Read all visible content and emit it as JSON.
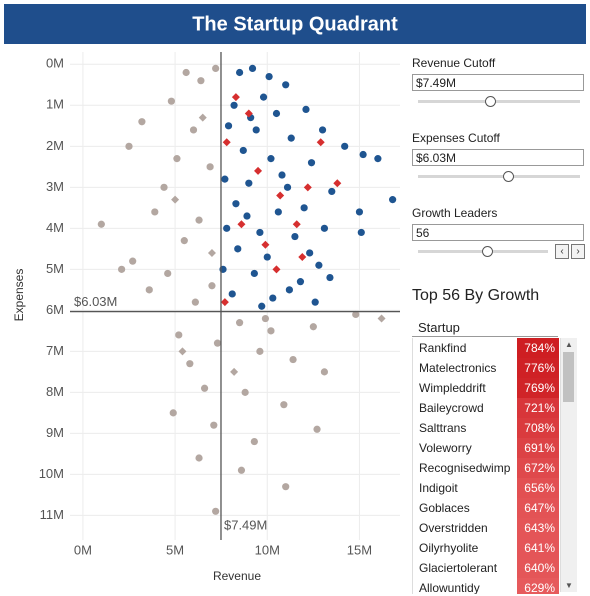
{
  "title": "The Startup Quadrant",
  "chart_data": {
    "type": "scatter",
    "x_label": "Revenue",
    "y_label": "Expenses",
    "xlim": [
      -0.7,
      17.2
    ],
    "xticks": [
      {
        "value": 0,
        "label": "0M"
      },
      {
        "value": 5,
        "label": "5M"
      },
      {
        "value": 10,
        "label": "10M"
      },
      {
        "value": 15,
        "label": "15M"
      }
    ],
    "ylim": [
      -0.3,
      11.6
    ],
    "y_inverted": true,
    "yticks": [
      {
        "value": 0,
        "label": "0M"
      },
      {
        "value": 1,
        "label": "1M"
      },
      {
        "value": 2,
        "label": "2M"
      },
      {
        "value": 3,
        "label": "3M"
      },
      {
        "value": 4,
        "label": "4M"
      },
      {
        "value": 5,
        "label": "5M"
      },
      {
        "value": 6,
        "label": "6M"
      },
      {
        "value": 7,
        "label": "7M"
      },
      {
        "value": 8,
        "label": "8M"
      },
      {
        "value": 9,
        "label": "9M"
      },
      {
        "value": 10,
        "label": "10M"
      },
      {
        "value": 11,
        "label": "11M"
      }
    ],
    "grid": true,
    "reference_lines": [
      {
        "axis": "x",
        "value": 7.49,
        "label": "$7.49M"
      },
      {
        "axis": "y",
        "value": 6.03,
        "label": "$6.03M"
      }
    ],
    "series": [
      {
        "color": "#b3a7a1",
        "marker": "circle",
        "x": [
          5.6,
          6.4,
          7.2,
          4.8,
          3.2,
          6.0,
          2.5,
          5.1,
          6.9,
          4.4,
          1.0,
          3.9,
          6.3,
          5.5,
          2.7,
          4.6,
          7.0,
          6.1,
          8.5,
          10.2,
          12.5,
          14.8,
          7.3,
          9.6,
          11.4,
          5.8,
          13.1,
          6.6,
          8.8,
          10.9,
          4.9,
          7.1,
          12.7,
          9.3,
          6.3,
          8.6,
          11.0,
          7.2,
          5.2,
          3.6,
          2.1,
          9.9
        ],
        "values": [
          0.2,
          0.4,
          0.1,
          0.9,
          1.4,
          1.6,
          2.0,
          2.3,
          2.5,
          3.0,
          3.9,
          3.6,
          3.8,
          4.3,
          4.8,
          5.1,
          5.4,
          5.8,
          6.3,
          6.5,
          6.4,
          6.1,
          6.8,
          7.0,
          7.2,
          7.3,
          7.5,
          7.9,
          8.0,
          8.3,
          8.5,
          8.8,
          8.9,
          9.2,
          9.6,
          9.9,
          10.3,
          10.9,
          6.6,
          5.5,
          5.0,
          6.2
        ]
      },
      {
        "color": "#b3a7a1",
        "marker": "diamond",
        "x": [
          6.5,
          5.0,
          7.0,
          16.2,
          5.4,
          8.2
        ],
        "values": [
          1.3,
          3.3,
          4.6,
          6.2,
          7.0,
          7.5
        ]
      },
      {
        "color": "#1f5591",
        "marker": "circle",
        "x": [
          8.5,
          9.2,
          10.1,
          11.0,
          9.8,
          8.2,
          10.5,
          12.1,
          7.9,
          9.4,
          11.3,
          13.0,
          14.2,
          8.7,
          10.2,
          12.4,
          15.2,
          16.0,
          7.7,
          9.0,
          11.1,
          13.5,
          16.8,
          8.3,
          10.6,
          12.0,
          15.0,
          7.8,
          9.6,
          11.5,
          13.1,
          15.1,
          8.4,
          10.0,
          12.3,
          7.6,
          9.3,
          11.8,
          13.4,
          8.1,
          10.3,
          12.6,
          9.7,
          11.2,
          8.9,
          10.8,
          9.1,
          12.8
        ],
        "values": [
          0.2,
          0.1,
          0.3,
          0.5,
          0.8,
          1.0,
          1.2,
          1.1,
          1.5,
          1.6,
          1.8,
          1.6,
          2.0,
          2.1,
          2.3,
          2.4,
          2.2,
          2.3,
          2.8,
          2.9,
          3.0,
          3.1,
          3.3,
          3.4,
          3.6,
          3.5,
          3.6,
          4.0,
          4.1,
          4.2,
          4.0,
          4.1,
          4.5,
          4.7,
          4.6,
          5.0,
          5.1,
          5.3,
          5.2,
          5.6,
          5.7,
          5.8,
          5.9,
          5.5,
          3.7,
          2.7,
          1.3,
          4.9
        ]
      },
      {
        "color": "#d62f2f",
        "marker": "diamond",
        "x": [
          8.3,
          7.8,
          9.5,
          10.7,
          12.2,
          13.8,
          8.6,
          11.6,
          9.9,
          10.5,
          7.7,
          12.9,
          9.0,
          11.9
        ],
        "values": [
          0.8,
          1.9,
          2.6,
          3.2,
          3.0,
          2.9,
          3.9,
          3.9,
          4.4,
          5.0,
          5.8,
          1.9,
          1.2,
          4.7
        ]
      }
    ]
  },
  "controls": [
    {
      "title": "Revenue Cutoff",
      "value": "$7.49M"
    },
    {
      "title": "Expenses Cutoff",
      "value": "$6.03M"
    },
    {
      "title": "Growth Leaders",
      "value": "56"
    }
  ],
  "leaders": {
    "title": "Top 56 By Growth",
    "column": "Startup",
    "rows": [
      {
        "name": "Rankfind",
        "growth": 784,
        "label": "784%"
      },
      {
        "name": "Matelectronics",
        "growth": 776,
        "label": "776%"
      },
      {
        "name": "Wimpleddrift",
        "growth": 769,
        "label": "769%"
      },
      {
        "name": "Baileycrowd",
        "growth": 721,
        "label": "721%"
      },
      {
        "name": "Salttrans",
        "growth": 708,
        "label": "708%"
      },
      {
        "name": "Voleworry",
        "growth": 691,
        "label": "691%"
      },
      {
        "name": "Recognisedwimp",
        "growth": 672,
        "label": "672%"
      },
      {
        "name": "Indigoit",
        "growth": 656,
        "label": "656%"
      },
      {
        "name": "Goblaces",
        "growth": 647,
        "label": "647%"
      },
      {
        "name": "Overstridden",
        "growth": 643,
        "label": "643%"
      },
      {
        "name": "Oilyrhyolite",
        "growth": 641,
        "label": "641%"
      },
      {
        "name": "Glaciertolerant",
        "growth": 640,
        "label": "640%"
      },
      {
        "name": "Allowuntidy",
        "growth": 629,
        "label": "629%"
      }
    ]
  }
}
